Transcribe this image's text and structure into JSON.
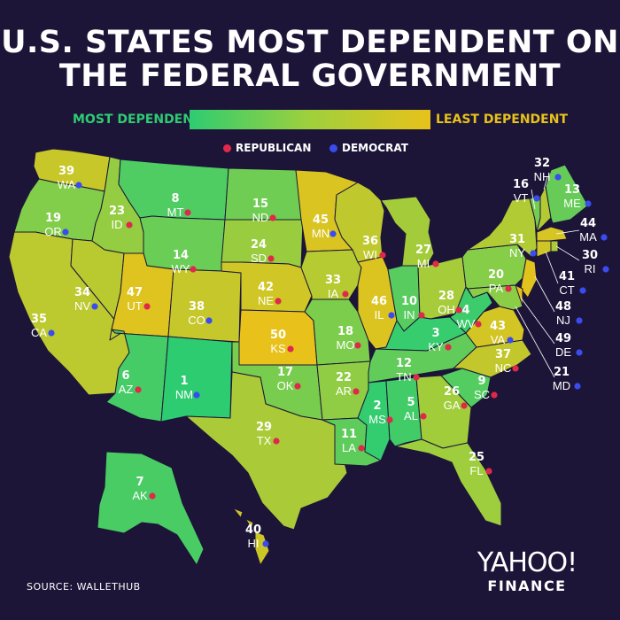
{
  "title_line1": "U.S. STATES MOST DEPENDENT ON",
  "title_line2": "THE FEDERAL GOVERNMENT",
  "scale": {
    "left": "MOST DEPENDENT",
    "right": "LEAST DEPENDENT",
    "left_color": "#2ecc71",
    "right_color": "#e8c21a"
  },
  "legend": [
    {
      "label": "REPUBLICAN",
      "color": "#e0294a"
    },
    {
      "label": "DEMOCRAT",
      "color": "#3a4cf0"
    }
  ],
  "source": "SOURCE:  WALLETHUB",
  "logo": {
    "line1": "YAHOO!",
    "line2": "FINANCE"
  },
  "states": [
    {
      "abbr": "WA",
      "rank": 39,
      "party": "D"
    },
    {
      "abbr": "OR",
      "rank": 19,
      "party": "D"
    },
    {
      "abbr": "CA",
      "rank": 35,
      "party": "D"
    },
    {
      "abbr": "ID",
      "rank": 23,
      "party": "R"
    },
    {
      "abbr": "NV",
      "rank": 34,
      "party": "D"
    },
    {
      "abbr": "MT",
      "rank": 8,
      "party": "R"
    },
    {
      "abbr": "WY",
      "rank": 14,
      "party": "R"
    },
    {
      "abbr": "UT",
      "rank": 47,
      "party": "R"
    },
    {
      "abbr": "CO",
      "rank": 38,
      "party": "D"
    },
    {
      "abbr": "AZ",
      "rank": 6,
      "party": "R"
    },
    {
      "abbr": "NM",
      "rank": 1,
      "party": "D"
    },
    {
      "abbr": "ND",
      "rank": 15,
      "party": "R"
    },
    {
      "abbr": "SD",
      "rank": 24,
      "party": "R"
    },
    {
      "abbr": "NE",
      "rank": 42,
      "party": "R"
    },
    {
      "abbr": "KS",
      "rank": 50,
      "party": "R"
    },
    {
      "abbr": "OK",
      "rank": 17,
      "party": "R"
    },
    {
      "abbr": "TX",
      "rank": 29,
      "party": "R"
    },
    {
      "abbr": "MN",
      "rank": 45,
      "party": "D"
    },
    {
      "abbr": "IA",
      "rank": 33,
      "party": "R"
    },
    {
      "abbr": "MO",
      "rank": 18,
      "party": "R"
    },
    {
      "abbr": "AR",
      "rank": 22,
      "party": "R"
    },
    {
      "abbr": "LA",
      "rank": 11,
      "party": "R"
    },
    {
      "abbr": "WI",
      "rank": 36,
      "party": "R"
    },
    {
      "abbr": "IL",
      "rank": 46,
      "party": "D"
    },
    {
      "abbr": "MI",
      "rank": 27,
      "party": "R"
    },
    {
      "abbr": "IN",
      "rank": 10,
      "party": "R"
    },
    {
      "abbr": "OH",
      "rank": 28,
      "party": "R"
    },
    {
      "abbr": "KY",
      "rank": 3,
      "party": "R"
    },
    {
      "abbr": "TN",
      "rank": 12,
      "party": "R"
    },
    {
      "abbr": "MS",
      "rank": 2,
      "party": "R"
    },
    {
      "abbr": "AL",
      "rank": 5,
      "party": "R"
    },
    {
      "abbr": "GA",
      "rank": 26,
      "party": "R"
    },
    {
      "abbr": "FL",
      "rank": 25,
      "party": "R"
    },
    {
      "abbr": "SC",
      "rank": 9,
      "party": "R"
    },
    {
      "abbr": "NC",
      "rank": 37,
      "party": "R"
    },
    {
      "abbr": "VA",
      "rank": 43,
      "party": "D"
    },
    {
      "abbr": "WV",
      "rank": 4,
      "party": "R"
    },
    {
      "abbr": "PA",
      "rank": 20,
      "party": "R"
    },
    {
      "abbr": "NY",
      "rank": 31,
      "party": "D"
    },
    {
      "abbr": "VT",
      "rank": 16,
      "party": "D"
    },
    {
      "abbr": "NH",
      "rank": 32,
      "party": "D"
    },
    {
      "abbr": "ME",
      "rank": 13,
      "party": "D"
    },
    {
      "abbr": "MA",
      "rank": 44,
      "party": "D"
    },
    {
      "abbr": "RI",
      "rank": 30,
      "party": "D"
    },
    {
      "abbr": "CT",
      "rank": 41,
      "party": "D"
    },
    {
      "abbr": "NJ",
      "rank": 48,
      "party": "D"
    },
    {
      "abbr": "DE",
      "rank": 49,
      "party": "D"
    },
    {
      "abbr": "MD",
      "rank": 21,
      "party": "D"
    },
    {
      "abbr": "AK",
      "rank": 7,
      "party": "R"
    },
    {
      "abbr": "HI",
      "rank": 40,
      "party": "D"
    }
  ]
}
